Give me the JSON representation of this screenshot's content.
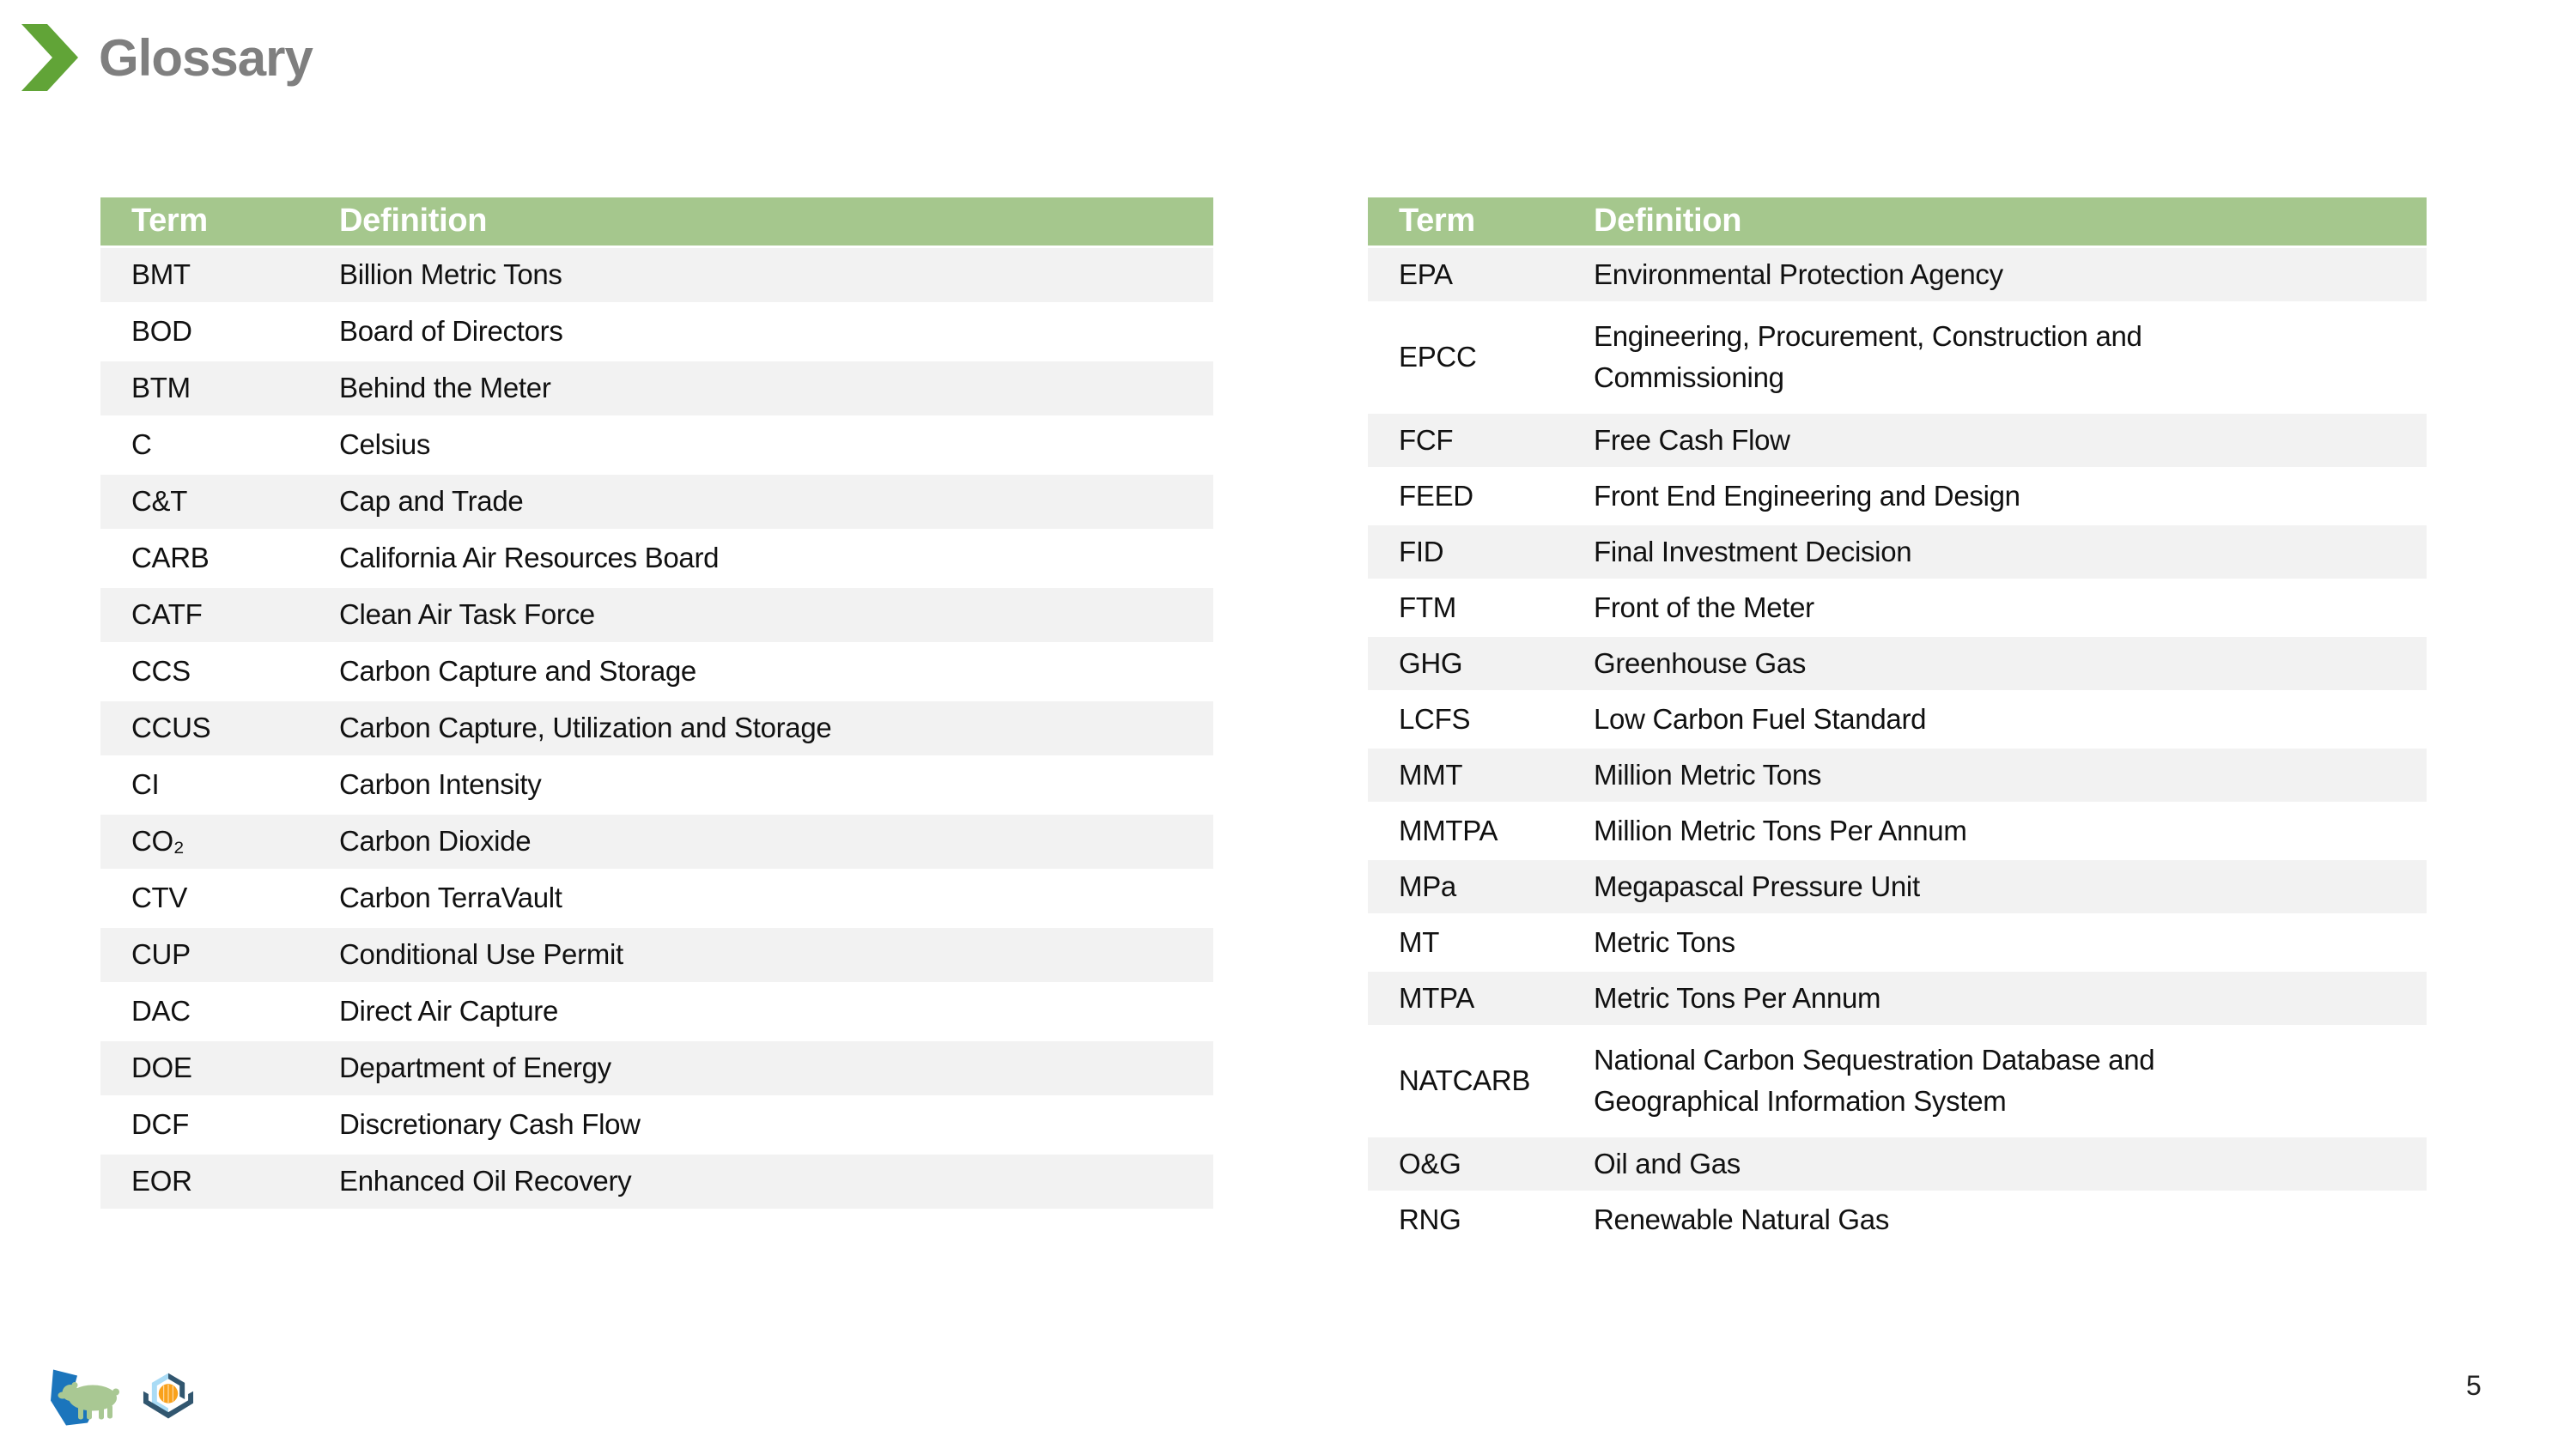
{
  "slide": {
    "title": "Glossary",
    "page_number": "5"
  },
  "colors": {
    "table_header_green": "#A5C78D",
    "chevron_green": "#61A437",
    "title_gray": "#7F7F7F",
    "row_band_gray": "#F2F2F2",
    "logo_blue": "#1B75BC",
    "logo_sage_green": "#A9C893",
    "logo_navy": "#31566F",
    "logo_light_blue": "#A9DBF5",
    "logo_orange": "#F9A11B"
  },
  "icons": {
    "title_chevron": "chevron-right-icon",
    "crc_logo": "california-bear-logo",
    "ctv_logo": "carbon-terravault-logo"
  },
  "table_left": {
    "headers": [
      "Term",
      "Definition"
    ],
    "rows": [
      [
        "BMT",
        "Billion Metric Tons"
      ],
      [
        "BOD",
        "Board of Directors"
      ],
      [
        "BTM",
        "Behind the Meter"
      ],
      [
        "C",
        "Celsius"
      ],
      [
        "C&T",
        "Cap and Trade"
      ],
      [
        "CARB",
        "California Air Resources Board"
      ],
      [
        "CATF",
        "Clean Air Task Force"
      ],
      [
        "CCS",
        "Carbon Capture and Storage"
      ],
      [
        "CCUS",
        "Carbon Capture, Utilization and Storage"
      ],
      [
        "CI",
        "Carbon Intensity"
      ],
      [
        "CO₂",
        "Carbon Dioxide"
      ],
      [
        "CTV",
        "Carbon TerraVault"
      ],
      [
        "CUP",
        "Conditional Use Permit"
      ],
      [
        "DAC",
        "Direct Air Capture"
      ],
      [
        "DOE",
        "Department of Energy"
      ],
      [
        "DCF",
        "Discretionary Cash Flow"
      ],
      [
        "EOR",
        "Enhanced Oil Recovery"
      ]
    ]
  },
  "table_right": {
    "headers": [
      "Term",
      "Definition"
    ],
    "rows": [
      [
        "EPA",
        "Environmental Protection Agency"
      ],
      [
        "EPCC",
        "Engineering, Procurement, Construction and\nCommissioning"
      ],
      [
        "FCF",
        "Free Cash Flow"
      ],
      [
        "FEED",
        "Front End Engineering and Design"
      ],
      [
        "FID",
        "Final Investment Decision"
      ],
      [
        "FTM",
        "Front of the Meter"
      ],
      [
        "GHG",
        "Greenhouse Gas"
      ],
      [
        "LCFS",
        "Low Carbon Fuel Standard"
      ],
      [
        "MMT",
        "Million Metric Tons"
      ],
      [
        "MMTPA",
        "Million Metric Tons Per Annum"
      ],
      [
        "MPa",
        "Megapascal Pressure Unit"
      ],
      [
        "MT",
        "Metric Tons"
      ],
      [
        "MTPA",
        "Metric Tons Per Annum"
      ],
      [
        "NATCARB",
        "National Carbon Sequestration Database and\nGeographical Information System"
      ],
      [
        "O&G",
        "Oil and Gas"
      ],
      [
        "RNG",
        "Renewable Natural Gas"
      ]
    ]
  }
}
